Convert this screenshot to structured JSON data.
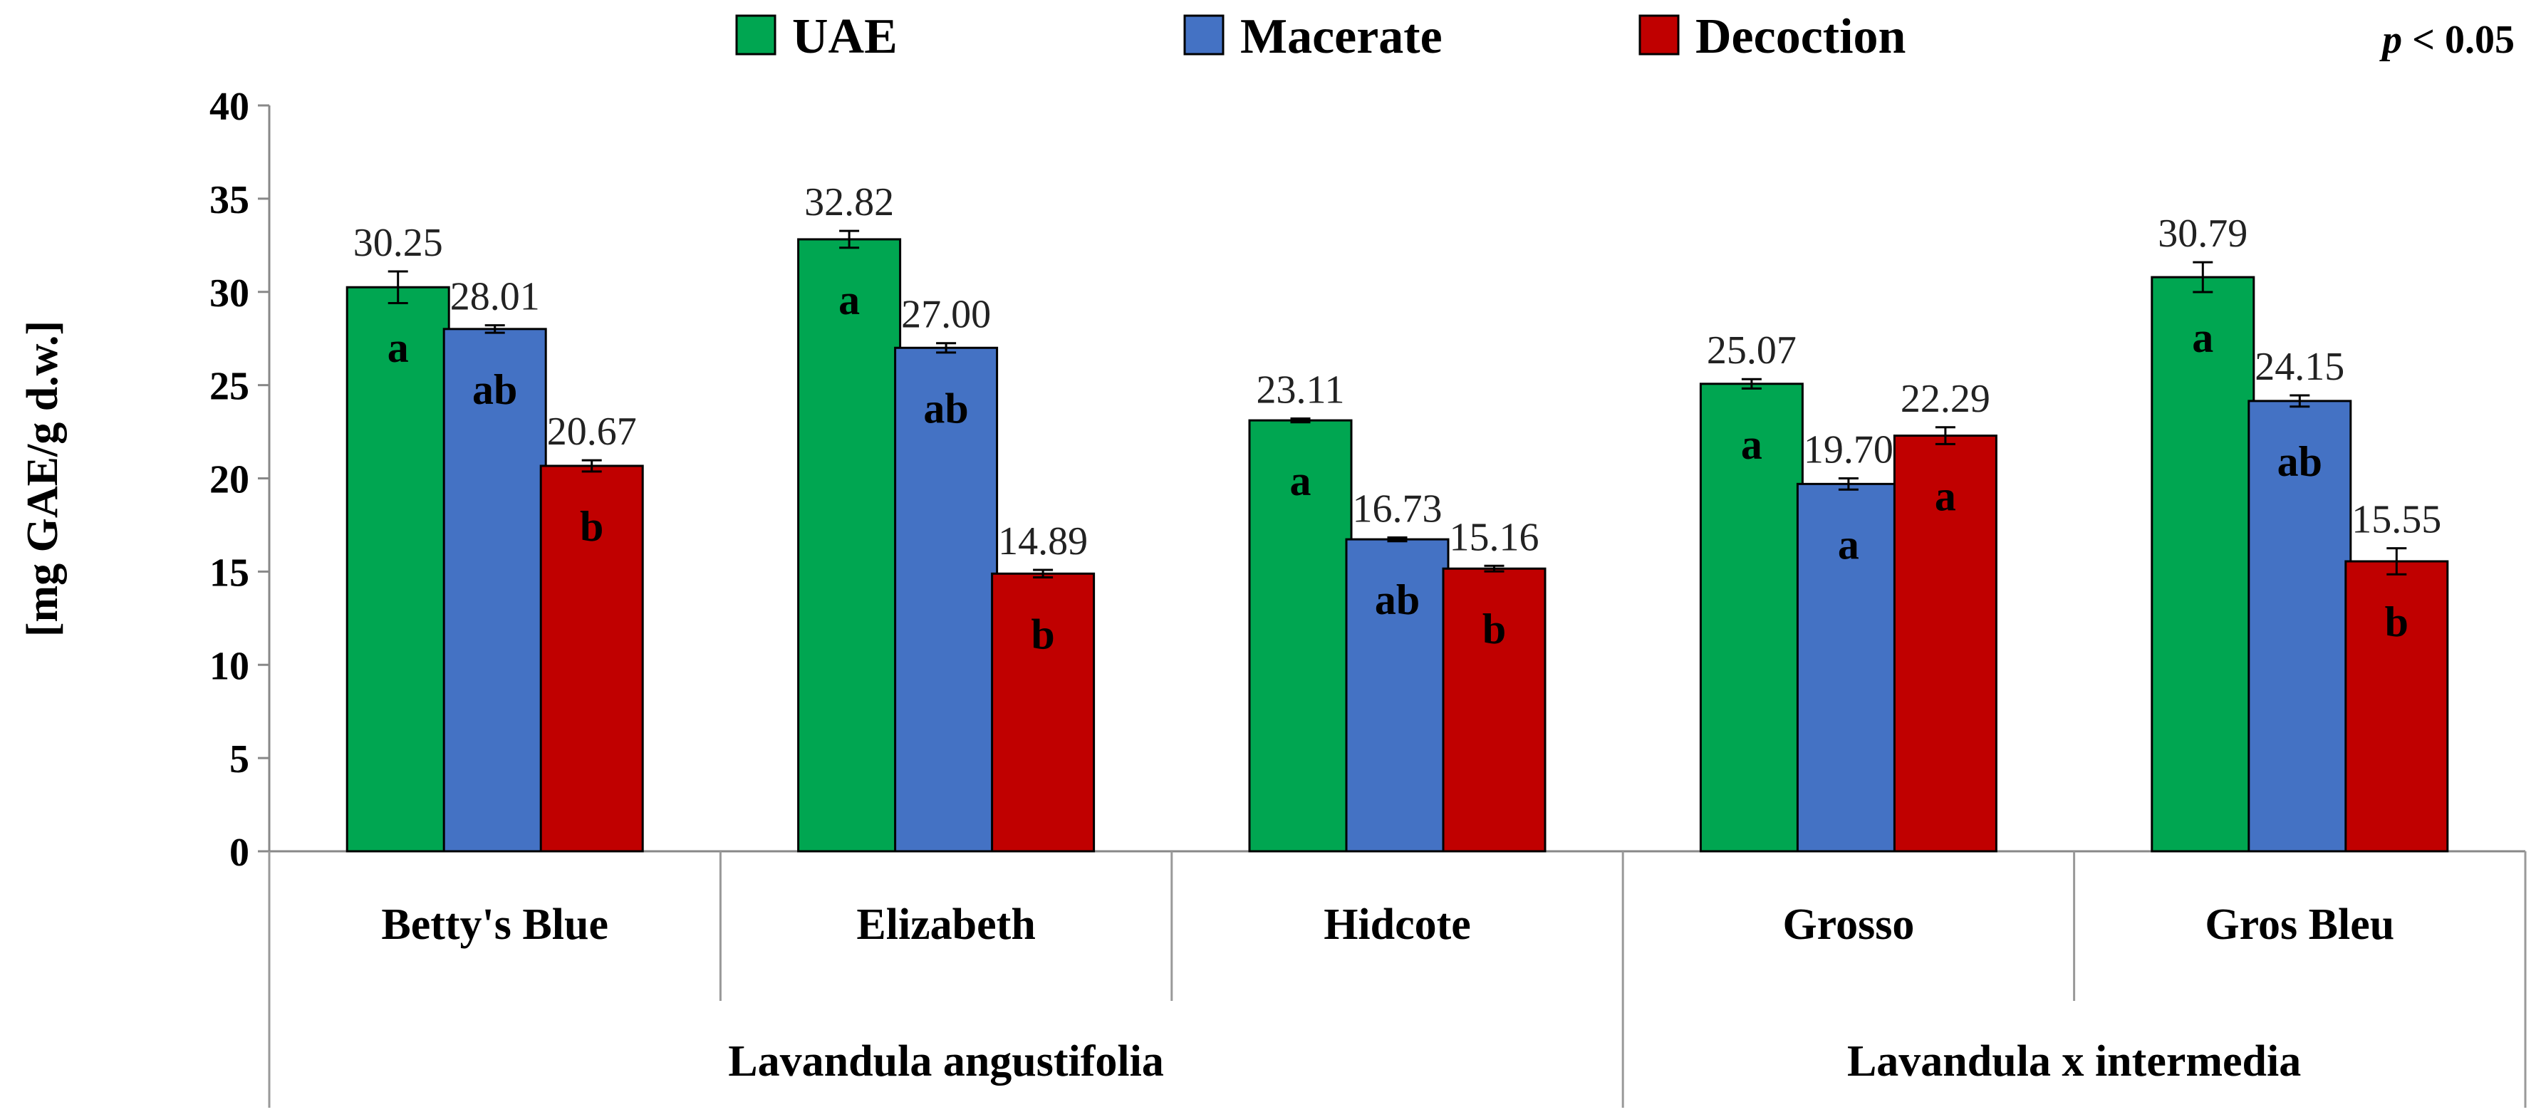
{
  "chart_data": {
    "type": "bar",
    "title": "",
    "xlabel": "",
    "ylabel": "[mg GAE/g d.w.]",
    "ylim": [
      0,
      40
    ],
    "yticks": [
      0,
      5,
      10,
      15,
      20,
      25,
      30,
      35,
      40
    ],
    "grid": false,
    "legend_position": "top",
    "annotation": {
      "p": "p",
      "rest": " < 0.05"
    },
    "categories": [
      "Betty's Blue",
      "Elizabeth",
      "Hidcote",
      "Grosso",
      "Gros Bleu"
    ],
    "groups": [
      {
        "label": "Lavandula angustifolia",
        "categories": [
          0,
          1,
          2
        ]
      },
      {
        "label": "Lavandula x intermedia",
        "categories": [
          3,
          4
        ]
      }
    ],
    "series": [
      {
        "name": "UAE",
        "color": "#00a651",
        "values": [
          30.25,
          32.82,
          23.11,
          25.07,
          30.79
        ],
        "value_labels": [
          "30.25",
          "32.82",
          "23.11",
          "25.07",
          "30.79"
        ],
        "errors": [
          0.85,
          0.45,
          0.1,
          0.25,
          0.8
        ],
        "letters": [
          "a",
          "a",
          "a",
          "a",
          "a"
        ]
      },
      {
        "name": "Macerate",
        "color": "#4472c4",
        "values": [
          28.01,
          27.0,
          16.73,
          19.7,
          24.15
        ],
        "value_labels": [
          "28.01",
          "27.00",
          "16.73",
          "19.70",
          "24.15"
        ],
        "errors": [
          0.2,
          0.25,
          0.1,
          0.3,
          0.3
        ],
        "letters": [
          "ab",
          "ab",
          "ab",
          "a",
          "ab"
        ]
      },
      {
        "name": "Decoction",
        "color": "#c00000",
        "values": [
          20.67,
          14.89,
          15.16,
          22.29,
          15.55
        ],
        "value_labels": [
          "20.67",
          "14.89",
          "15.16",
          "22.29",
          "15.55"
        ],
        "errors": [
          0.3,
          0.2,
          0.15,
          0.45,
          0.7
        ],
        "letters": [
          "b",
          "b",
          "b",
          "a",
          "b"
        ]
      }
    ]
  }
}
